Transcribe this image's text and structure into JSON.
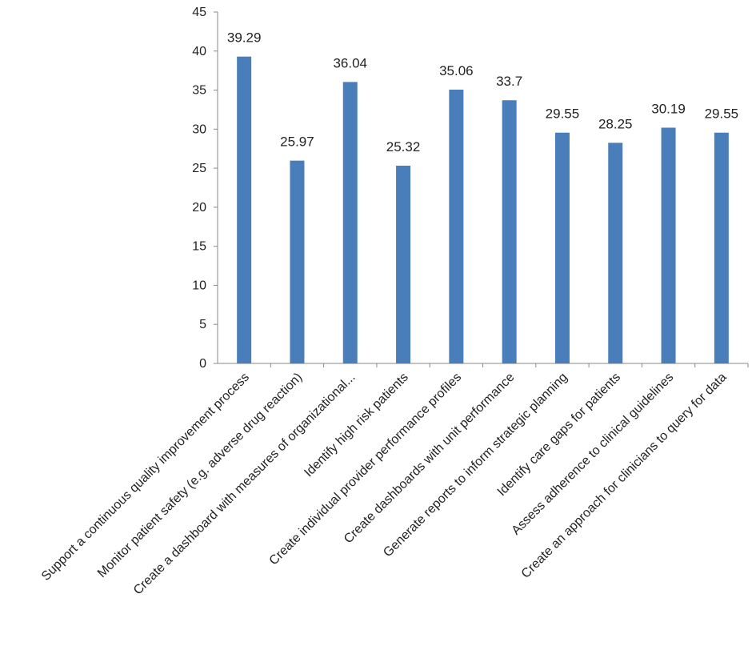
{
  "chart_data": {
    "type": "bar",
    "title": "",
    "xlabel": "",
    "ylabel": "",
    "ylim": [
      0,
      45
    ],
    "yticks": [
      0,
      5,
      10,
      15,
      20,
      25,
      30,
      35,
      40,
      45
    ],
    "grid": false,
    "legend": "none",
    "bar_color": "#4a7ebb",
    "axis_color": "#888888",
    "categories": [
      "Support a continuous quality improvement process",
      "Monitor patient safety (e.g. adverse drug reaction)",
      "Create a dashboard with measures of organizational...",
      "Identify high risk patients",
      "Create individual provider performance profiles",
      "Create dashboards with unit performance",
      "Generate reports to inform strategic planning",
      "Identify care gaps for patients",
      "Assess adherence to clinical guidelines",
      "Create an approach for clinicians to query for data"
    ],
    "values": [
      39.29,
      25.97,
      36.04,
      25.32,
      35.06,
      33.7,
      29.55,
      28.25,
      30.19,
      29.55
    ],
    "value_labels": [
      "39.29",
      "25.97",
      "36.04",
      "25.32",
      "35.06",
      "33.7",
      "29.55",
      "28.25",
      "30.19",
      "29.55"
    ]
  }
}
